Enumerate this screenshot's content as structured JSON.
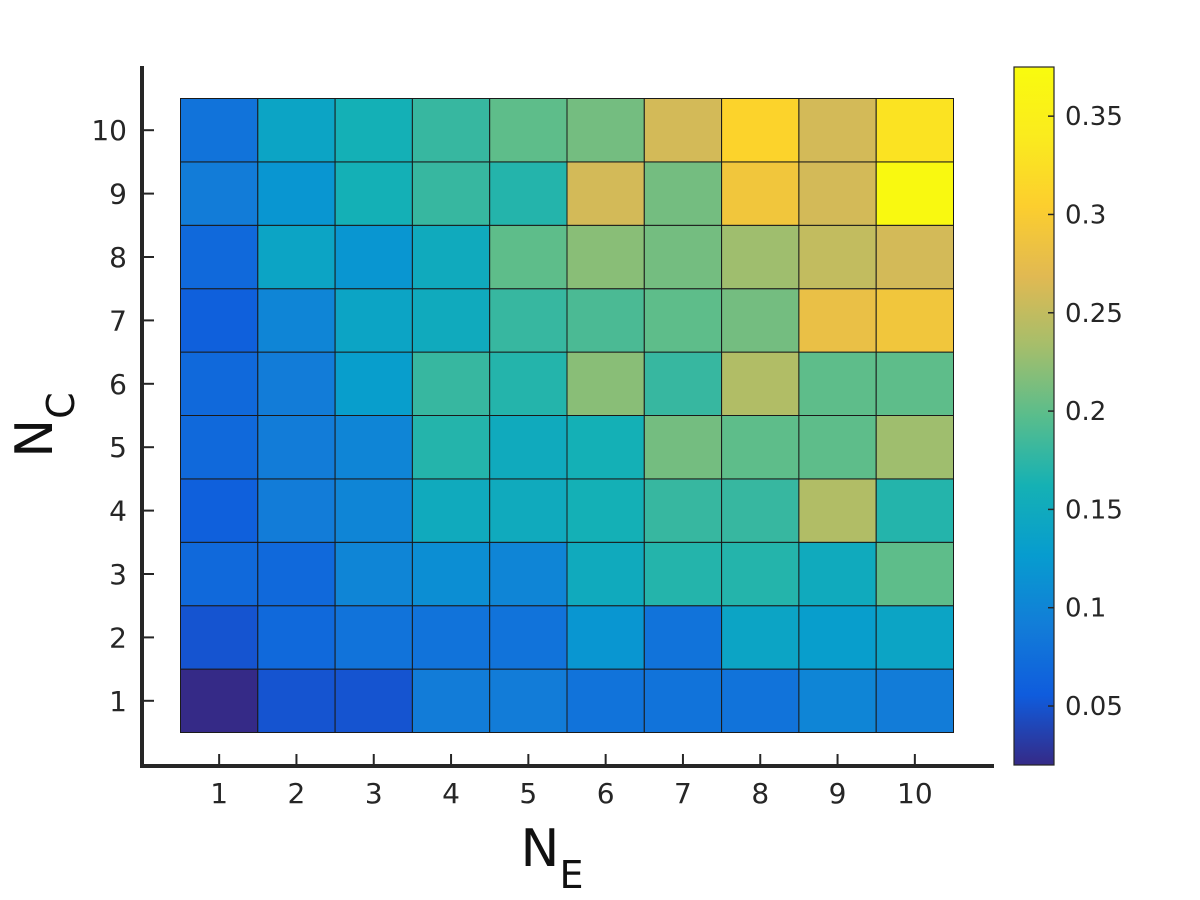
{
  "chart_data": {
    "type": "heatmap",
    "xlabel": {
      "main": "N",
      "sub": "E"
    },
    "ylabel": {
      "main": "N",
      "sub": "C"
    },
    "x_categories": [
      "1",
      "2",
      "3",
      "4",
      "5",
      "6",
      "7",
      "8",
      "9",
      "10"
    ],
    "y_categories": [
      "1",
      "2",
      "3",
      "4",
      "5",
      "6",
      "7",
      "8",
      "9",
      "10"
    ],
    "z_rows_from_nc1": [
      [
        0.02,
        0.05,
        0.05,
        0.09,
        0.09,
        0.08,
        0.08,
        0.08,
        0.1,
        0.09
      ],
      [
        0.05,
        0.07,
        0.08,
        0.08,
        0.08,
        0.12,
        0.08,
        0.14,
        0.13,
        0.14
      ],
      [
        0.07,
        0.07,
        0.1,
        0.11,
        0.1,
        0.15,
        0.17,
        0.17,
        0.15,
        0.2
      ],
      [
        0.06,
        0.09,
        0.1,
        0.15,
        0.15,
        0.16,
        0.18,
        0.18,
        0.24,
        0.17
      ],
      [
        0.07,
        0.09,
        0.1,
        0.17,
        0.15,
        0.16,
        0.21,
        0.2,
        0.2,
        0.23
      ],
      [
        0.07,
        0.09,
        0.13,
        0.18,
        0.17,
        0.22,
        0.18,
        0.24,
        0.2,
        0.2
      ],
      [
        0.06,
        0.1,
        0.14,
        0.15,
        0.18,
        0.19,
        0.2,
        0.21,
        0.28,
        0.29
      ],
      [
        0.07,
        0.14,
        0.12,
        0.15,
        0.2,
        0.22,
        0.21,
        0.23,
        0.25,
        0.26
      ],
      [
        0.09,
        0.12,
        0.16,
        0.18,
        0.17,
        0.26,
        0.21,
        0.29,
        0.26,
        0.37
      ],
      [
        0.08,
        0.14,
        0.16,
        0.18,
        0.2,
        0.21,
        0.26,
        0.31,
        0.26,
        0.33
      ]
    ],
    "colorbar": {
      "min": 0.02,
      "max": 0.375,
      "ticks": [
        0.05,
        0.1,
        0.15,
        0.2,
        0.25,
        0.3,
        0.35
      ],
      "tick_labels": [
        "0.05",
        "0.1",
        "0.15",
        "0.2",
        "0.25",
        "0.3",
        "0.35"
      ]
    },
    "colormap": "parula",
    "grid": false
  }
}
